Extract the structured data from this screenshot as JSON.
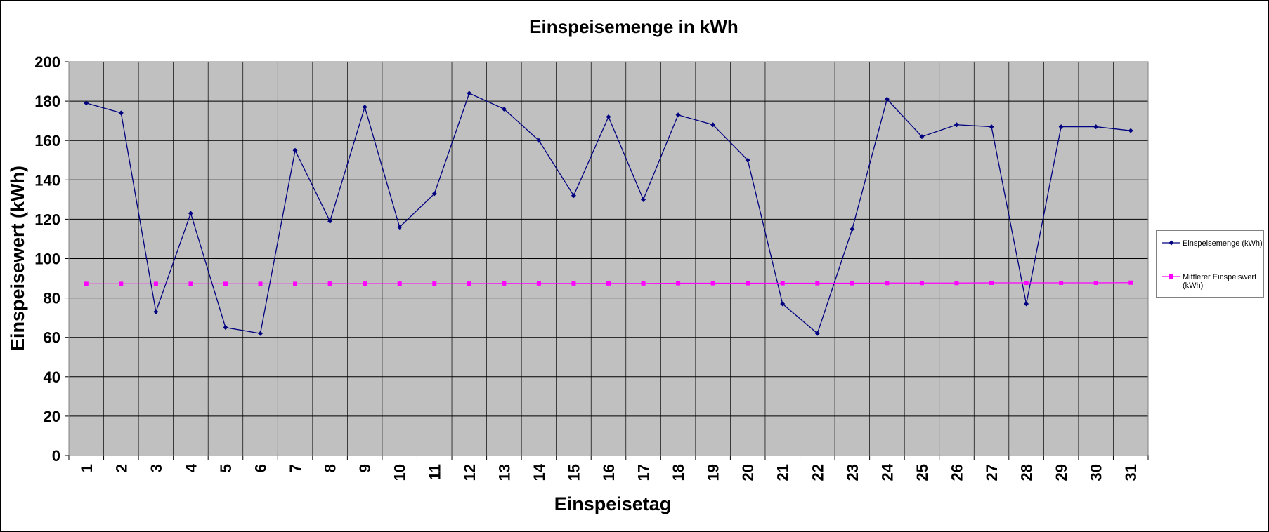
{
  "chart_data": {
    "type": "line",
    "title": "Einspeisemenge in kWh",
    "xlabel": "Einspeisetag",
    "ylabel": "Einspeisewert  (kWh)",
    "categories": [
      "1",
      "2",
      "3",
      "4",
      "5",
      "6",
      "7",
      "8",
      "9",
      "10",
      "11",
      "12",
      "13",
      "14",
      "15",
      "16",
      "17",
      "18",
      "19",
      "20",
      "21",
      "22",
      "23",
      "24",
      "25",
      "26",
      "27",
      "28",
      "29",
      "30",
      "31"
    ],
    "ylim": [
      0,
      200
    ],
    "yticks": [
      "0",
      "20",
      "40",
      "60",
      "80",
      "100",
      "120",
      "140",
      "160",
      "180",
      "200"
    ],
    "grid": true,
    "legend_position": "right",
    "plot_background": "#c0c0c0",
    "series": [
      {
        "name": "Einspeisemenge (kWh)",
        "color": "#000080",
        "marker": "diamond",
        "values": [
          179,
          174,
          73,
          123,
          65,
          62,
          155,
          119,
          177,
          116,
          133,
          184,
          176,
          160,
          132,
          172,
          130,
          173,
          168,
          150,
          77,
          62,
          115,
          181,
          162,
          168,
          167,
          77,
          167,
          167,
          165
        ]
      },
      {
        "name": "Mittlerer Einspeiswert",
        "name_line2": "(kWh)",
        "color": "#ff00ff",
        "marker": "square",
        "values": [
          87.2,
          87.2,
          87.2,
          87.2,
          87.2,
          87.2,
          87.2,
          87.3,
          87.3,
          87.3,
          87.3,
          87.3,
          87.4,
          87.4,
          87.4,
          87.4,
          87.4,
          87.5,
          87.5,
          87.5,
          87.5,
          87.5,
          87.5,
          87.6,
          87.6,
          87.6,
          87.7,
          87.7,
          87.7,
          87.7,
          87.8
        ]
      }
    ]
  }
}
